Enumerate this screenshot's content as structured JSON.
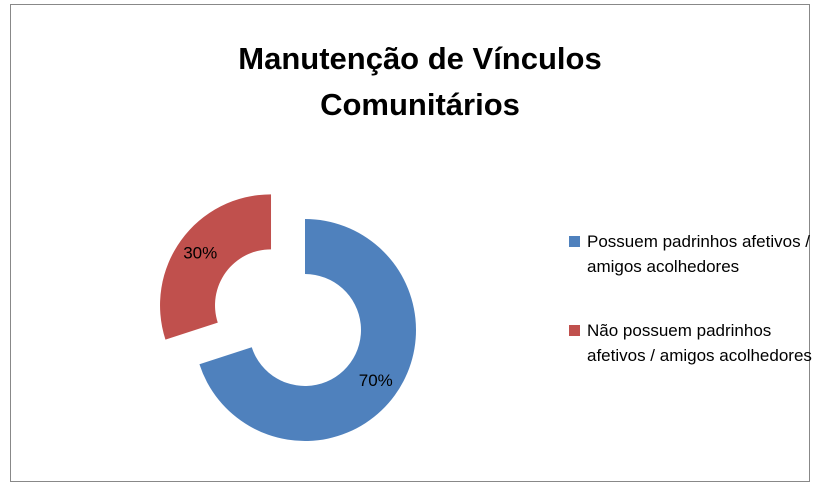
{
  "chart_data": {
    "type": "donut",
    "title": "Manutenção de Vínculos Comunitários",
    "categories": [
      "Possuem padrinhos afetivos / amigos acolhedores",
      "Não possuem padrinhos afetivos / amigos acolhedores"
    ],
    "values": [
      70,
      30
    ],
    "value_labels": [
      "70%",
      "30%"
    ],
    "colors": [
      "#4f81bd",
      "#c0504d"
    ],
    "exploded": [
      false,
      true
    ],
    "legend": "right"
  }
}
